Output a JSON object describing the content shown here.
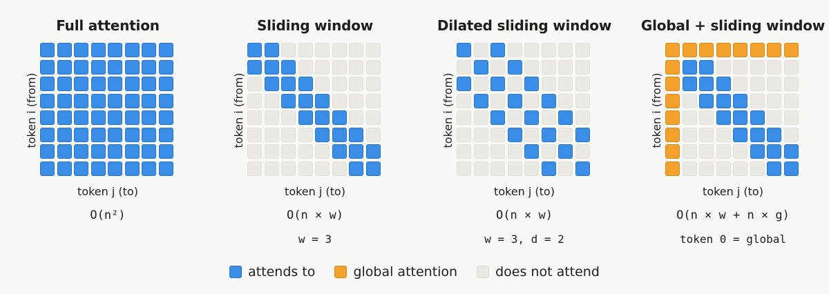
{
  "colors": {
    "attend": "#3a8ee6",
    "global": "#f2a22c",
    "none": "#ebe9e4",
    "background": "#f8f8f6"
  },
  "panels": [
    {
      "title": "Full attention",
      "ylabel": "token i (from)",
      "xlabel": "token j (to)",
      "complexity": "O(n²)",
      "param": "",
      "matrix": [
        "AAAAAAAA",
        "AAAAAAAA",
        "AAAAAAAA",
        "AAAAAAAA",
        "AAAAAAAA",
        "AAAAAAAA",
        "AAAAAAAA",
        "AAAAAAAA"
      ]
    },
    {
      "title": "Sliding window",
      "ylabel": "token i (from)",
      "xlabel": "token j (to)",
      "complexity": "O(n × w)",
      "param": "w = 3",
      "matrix": [
        "AA......",
        "AAA.....",
        ".AAA....",
        "..AAA...",
        "...AAA..",
        "....AAA.",
        ".....AAA",
        "......AA"
      ]
    },
    {
      "title": "Dilated sliding window",
      "ylabel": "token i (from)",
      "xlabel": "token j (to)",
      "complexity": "O(n × w)",
      "param": "w = 3, d = 2",
      "matrix": [
        "A.A.....",
        ".A.A....",
        "A.A.A...",
        ".A.A.A..",
        "..A.A.A.",
        "...A.A.A",
        "....A.A.",
        ".....A.A"
      ]
    },
    {
      "title": "Global + sliding window",
      "ylabel": "token i (from)",
      "xlabel": "token j (to)",
      "complexity": "O(n × w + n × g)",
      "param": "token 0 = global",
      "matrix": [
        "GGGGGGGG",
        "GAA.....",
        "GAAA....",
        "G.AAA...",
        "G..AAA..",
        "G...AAA.",
        "G....AAA",
        "G.....AA"
      ]
    }
  ],
  "legend": [
    {
      "label": "attends to",
      "kind": "attend"
    },
    {
      "label": "global attention",
      "kind": "global"
    },
    {
      "label": "does not attend",
      "kind": "none"
    }
  ]
}
